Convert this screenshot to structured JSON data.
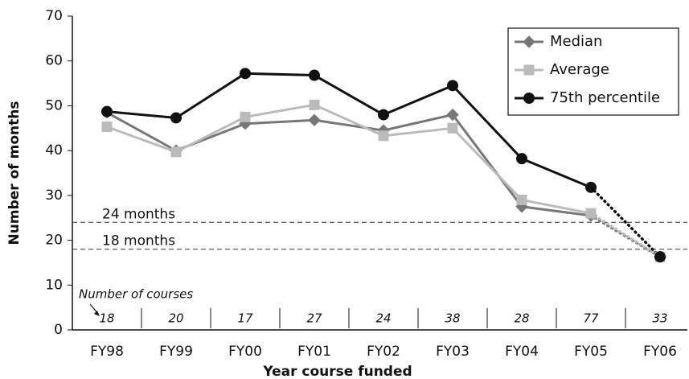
{
  "chart_data": {
    "type": "line",
    "x_label": "Year course funded",
    "y_label": "Number of months",
    "categories": [
      "FY98",
      "FY99",
      "FY00",
      "FY01",
      "FY02",
      "FY03",
      "FY04",
      "FY05",
      "FY06"
    ],
    "series": [
      {
        "name": "Median",
        "color": "#777777",
        "marker": "diamond",
        "values": [
          48.5,
          40,
          46,
          46.8,
          44.5,
          48,
          27.5,
          25.5,
          16.3
        ]
      },
      {
        "name": "Average",
        "color": "#bbbbbb",
        "marker": "square",
        "values": [
          45.3,
          39.7,
          47.5,
          50.2,
          43.3,
          45,
          29,
          26,
          16.3
        ]
      },
      {
        "name": "75th percentile",
        "color": "#111111",
        "marker": "circle",
        "values": [
          48.7,
          47.3,
          57.2,
          56.8,
          48,
          54.5,
          38.2,
          31.8,
          16.3
        ]
      }
    ],
    "dotted_last_segment": true,
    "reference_lines": [
      {
        "value": 24,
        "label": "24 months"
      },
      {
        "value": 18,
        "label": "18 months"
      }
    ],
    "course_counts_label": "Number of courses",
    "course_counts": [
      18,
      20,
      17,
      27,
      24,
      38,
      28,
      77,
      33
    ],
    "ylim": [
      0,
      70
    ],
    "yticks": [
      0,
      10,
      20,
      30,
      40,
      50,
      60,
      70
    ],
    "grid": false,
    "legend": "upper right"
  }
}
